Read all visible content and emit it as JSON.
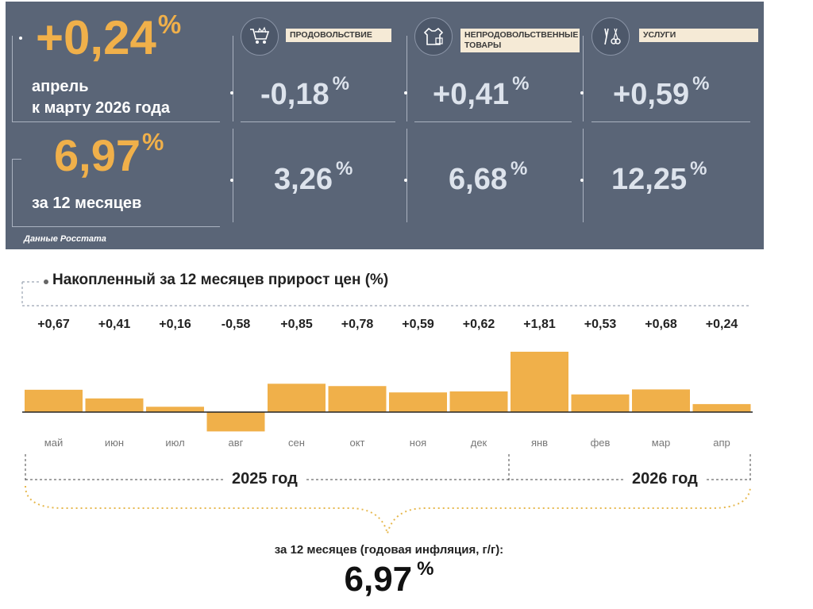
{
  "summary": {
    "monthly_value": "+0,24",
    "percent": "%",
    "monthly_line1": "апрель",
    "monthly_line2": "к марту 2026 года",
    "annual_value": "6,97",
    "annual_label": "за 12 месяцев",
    "source": "Данные Росстата"
  },
  "categories": [
    {
      "label_line1": "ПРОДОВОЛЬСТВИЕ",
      "label_line2": "",
      "icon": "shopping-cart-icon",
      "monthly": "-0,18",
      "annual": "3,26"
    },
    {
      "label_line1": "НЕПРОДОВОЛЬСТВЕННЫЕ",
      "label_line2": "ТОВАРЫ",
      "icon": "clothing-icon",
      "monthly": "+0,41",
      "annual": "6,68"
    },
    {
      "label_line1": "УСЛУГИ",
      "label_line2": "",
      "icon": "tools-icon",
      "monthly": "+0,59",
      "annual": "12,25"
    }
  ],
  "colors": {
    "panel": "#5a6577",
    "accent": "#f0b04a",
    "bar": "#f0b04a",
    "value_light": "#dde3ec"
  },
  "chart_data": {
    "type": "bar",
    "title": "Накопленный за 12 месяцев прирост цен (%)",
    "categories": [
      "май",
      "июн",
      "июл",
      "авг",
      "сен",
      "окт",
      "ноя",
      "дек",
      "янв",
      "фев",
      "мар",
      "апр"
    ],
    "value_labels": [
      "+0,67",
      "+0,41",
      "+0,16",
      "-0,58",
      "+0,85",
      "+0,78",
      "+0,59",
      "+0,62",
      "+1,81",
      "+0,53",
      "+0,68",
      "+0,24"
    ],
    "values": [
      0.67,
      0.41,
      0.16,
      -0.58,
      0.85,
      0.78,
      0.59,
      0.62,
      1.81,
      0.53,
      0.68,
      0.24
    ],
    "years": [
      {
        "label": "2025 год",
        "from": "май",
        "to": "дек"
      },
      {
        "label": "2026 год",
        "from": "янв",
        "to": "апр"
      }
    ],
    "total_label": "за 12 месяцев (годовая инфляция, г/г):",
    "total_value": "6,97",
    "total_unit": "%"
  }
}
